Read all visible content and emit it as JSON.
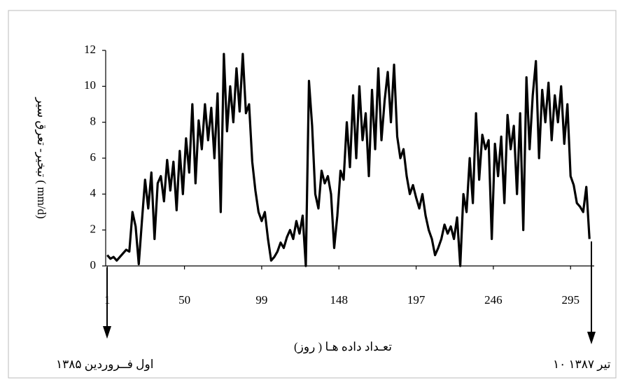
{
  "chart_data": {
    "type": "line",
    "y_label": "تبخیر- تعرق سیر ( mm/d)",
    "x_label": "تعـداد داده هـا ( روز)",
    "annotations": [
      "اول فــروردین ۱۳۸۵",
      "۱۰ تیر ۱۳۸۷"
    ],
    "xlim": [
      0,
      310
    ],
    "xticks": [
      1,
      50,
      99,
      148,
      197,
      246,
      295
    ],
    "ylim": [
      0,
      12
    ],
    "yticks": [
      0,
      2,
      4,
      6,
      8,
      10,
      12
    ],
    "grid": false,
    "series": [
      {
        "color": "#000000",
        "x": [
          1,
          3,
          5,
          7,
          9,
          11,
          13,
          15,
          17,
          19,
          21,
          23,
          25,
          27,
          29,
          31,
          33,
          35,
          37,
          39,
          41,
          43,
          45,
          47,
          49,
          51,
          53,
          55,
          57,
          59,
          61,
          63,
          65,
          67,
          69,
          71,
          73,
          75,
          77,
          79,
          81,
          83,
          85,
          87,
          89,
          91,
          93,
          95,
          97,
          99,
          101,
          103,
          105,
          107,
          109,
          111,
          113,
          115,
          117,
          119,
          121,
          123,
          125,
          127,
          129,
          131,
          133,
          135,
          137,
          139,
          141,
          143,
          145,
          147,
          149,
          151,
          153,
          155,
          157,
          159,
          161,
          163,
          165,
          167,
          169,
          171,
          173,
          175,
          177,
          179,
          181,
          183,
          185,
          187,
          189,
          191,
          193,
          195,
          197,
          199,
          201,
          203,
          205,
          207,
          209,
          211,
          213,
          215,
          217,
          219,
          221,
          223,
          225,
          227,
          229,
          231,
          233,
          235,
          237,
          239,
          241,
          243,
          245,
          247,
          249,
          251,
          253,
          255,
          257,
          259,
          261,
          263,
          265,
          267,
          269,
          271,
          273,
          275,
          277,
          279,
          281,
          283,
          285,
          287,
          289,
          291,
          293,
          295,
          297,
          299,
          301,
          303,
          305,
          307
        ],
        "values": [
          0.6,
          0.4,
          0.5,
          0.3,
          0.5,
          0.7,
          0.9,
          0.8,
          3.0,
          2.2,
          0.1,
          2.5,
          4.8,
          3.2,
          5.2,
          1.5,
          4.6,
          5.0,
          3.6,
          5.9,
          4.2,
          5.8,
          3.1,
          6.4,
          4.0,
          7.1,
          5.2,
          9.0,
          4.6,
          8.1,
          6.5,
          9.0,
          7.0,
          8.8,
          6.0,
          9.6,
          3.0,
          11.8,
          7.5,
          10.0,
          8.0,
          11.0,
          8.6,
          11.8,
          8.5,
          9.0,
          5.8,
          4.2,
          3.0,
          2.5,
          3.0,
          1.5,
          0.3,
          0.5,
          0.8,
          1.3,
          1.0,
          1.6,
          2.0,
          1.5,
          2.5,
          1.8,
          2.8,
          0.0,
          10.3,
          7.8,
          4.0,
          3.2,
          5.3,
          4.6,
          5.0,
          4.0,
          1.0,
          2.8,
          5.3,
          4.8,
          8.0,
          5.5,
          9.5,
          6.0,
          10.0,
          7.0,
          8.5,
          5.0,
          9.8,
          6.5,
          11.0,
          7.0,
          9.2,
          10.8,
          8.0,
          11.2,
          7.2,
          6.0,
          6.5,
          5.0,
          4.0,
          4.5,
          3.8,
          3.2,
          4.0,
          2.8,
          2.0,
          1.5,
          0.6,
          1.0,
          1.5,
          2.3,
          1.8,
          2.2,
          1.5,
          2.7,
          0.0,
          4.0,
          3.0,
          6.0,
          3.5,
          8.5,
          4.8,
          7.3,
          6.5,
          7.0,
          1.5,
          6.8,
          5.0,
          7.2,
          3.5,
          8.4,
          6.5,
          7.8,
          4.0,
          8.5,
          2.0,
          10.5,
          6.5,
          9.5,
          11.4,
          6.0,
          9.8,
          8.0,
          10.2,
          7.0,
          9.5,
          8.0,
          10.0,
          6.8,
          9.0,
          5.0,
          4.5,
          3.5,
          3.3,
          3.0,
          4.4,
          1.5
        ]
      }
    ]
  }
}
